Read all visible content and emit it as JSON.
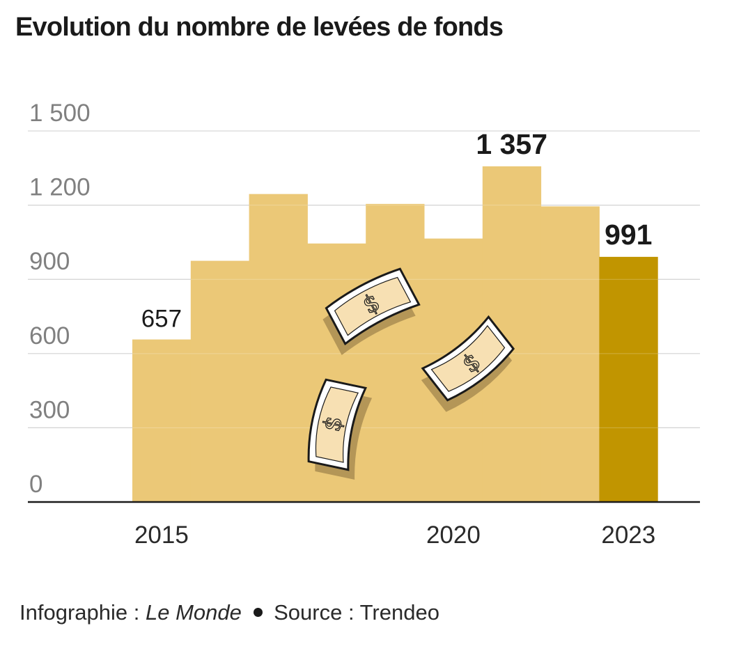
{
  "title": "Evolution du nombre de levées de fonds",
  "chart_data": {
    "type": "bar",
    "title": "Evolution du nombre de levées de fonds",
    "xlabel": "",
    "ylabel": "",
    "categories": [
      "2015",
      "2016",
      "2017",
      "2018",
      "2019",
      "2020",
      "2021",
      "2022",
      "2023"
    ],
    "values": [
      657,
      975,
      1245,
      1045,
      1205,
      1065,
      1357,
      1195,
      991
    ],
    "tick_labels_x": [
      "2015",
      "2020",
      "2023"
    ],
    "ylim": [
      0,
      1600
    ],
    "yticks": [
      0,
      300,
      600,
      900,
      1200,
      1500
    ],
    "ytick_labels": [
      "0",
      "300",
      "600",
      "900",
      "1 200",
      "1 500"
    ],
    "data_labels": [
      {
        "category": "2015",
        "text": "657",
        "bold": false
      },
      {
        "category": "2021",
        "text": "1 357",
        "bold": true
      },
      {
        "category": "2023",
        "text": "991",
        "bold": true
      }
    ],
    "highlight": "2023",
    "grid": true,
    "colors": {
      "bar": "#ebc877",
      "highlight": "#c19500",
      "grid": "#c8c8c8",
      "axis": "#1a1a1a",
      "tick_text": "#808080",
      "bill_face": "#f7e0b3",
      "bill_shadow": "#b49657"
    }
  },
  "footer": {
    "prefix": "Infographie :",
    "brand": "Le Monde",
    "source": "Source : Trendeo"
  },
  "illustration": {
    "icon": "dollar-bill-icon",
    "count": 3
  }
}
